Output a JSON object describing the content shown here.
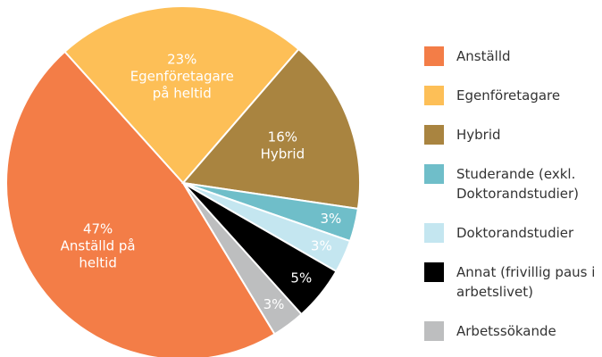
{
  "chart_data": {
    "type": "pie",
    "categories": [
      "Anställd",
      "Egenföretagare",
      "Hybrid",
      "Studerande (exkl. Doktorandstudier)",
      "Doktorandstudier",
      "Annat (frivillig paus i arbetslivet)",
      "Arbetssökande"
    ],
    "values": [
      47,
      23,
      16,
      3,
      3,
      5,
      3
    ],
    "value_labels": [
      "47%",
      "23%",
      "16%",
      "3%",
      "3%",
      "5%",
      "3%"
    ],
    "slice_texts": [
      [
        "Anställd på",
        "heltid"
      ],
      [
        "Egenföretagare",
        "på heltid"
      ],
      [
        "Hybrid"
      ],
      [],
      [],
      [],
      []
    ],
    "colors": [
      "#f37d47",
      "#fdbf57",
      "#a98440",
      "#6fbec9",
      "#c4e6f0",
      "#000000",
      "#bdbebf"
    ],
    "legend": "right"
  }
}
